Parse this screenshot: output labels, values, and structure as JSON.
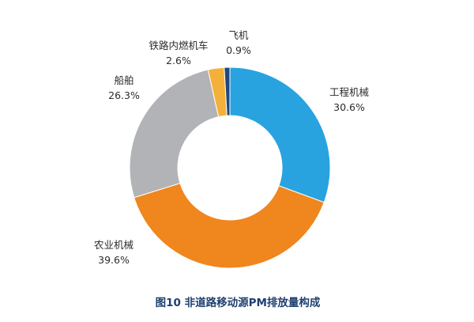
{
  "chart_data": {
    "type": "pie",
    "title": "图10 非道路移动源PM排放量构成",
    "slices": [
      {
        "label": "工程机械",
        "value_text": "30.6%",
        "value": 30.6,
        "color": "#29a3df"
      },
      {
        "label": "农业机械",
        "value_text": "39.6%",
        "value": 39.6,
        "color": "#f0861e"
      },
      {
        "label": "船舶",
        "value_text": "26.3%",
        "value": 26.3,
        "color": "#b2b3b6"
      },
      {
        "label": "铁路内燃机车",
        "value_text": "2.6%",
        "value": 2.6,
        "color": "#f4b13a"
      },
      {
        "label": "飞机",
        "value_text": "0.9%",
        "value": 0.9,
        "color": "#22477a"
      }
    ],
    "start_angle_deg": 0,
    "direction": "clockwise",
    "donut": true
  }
}
